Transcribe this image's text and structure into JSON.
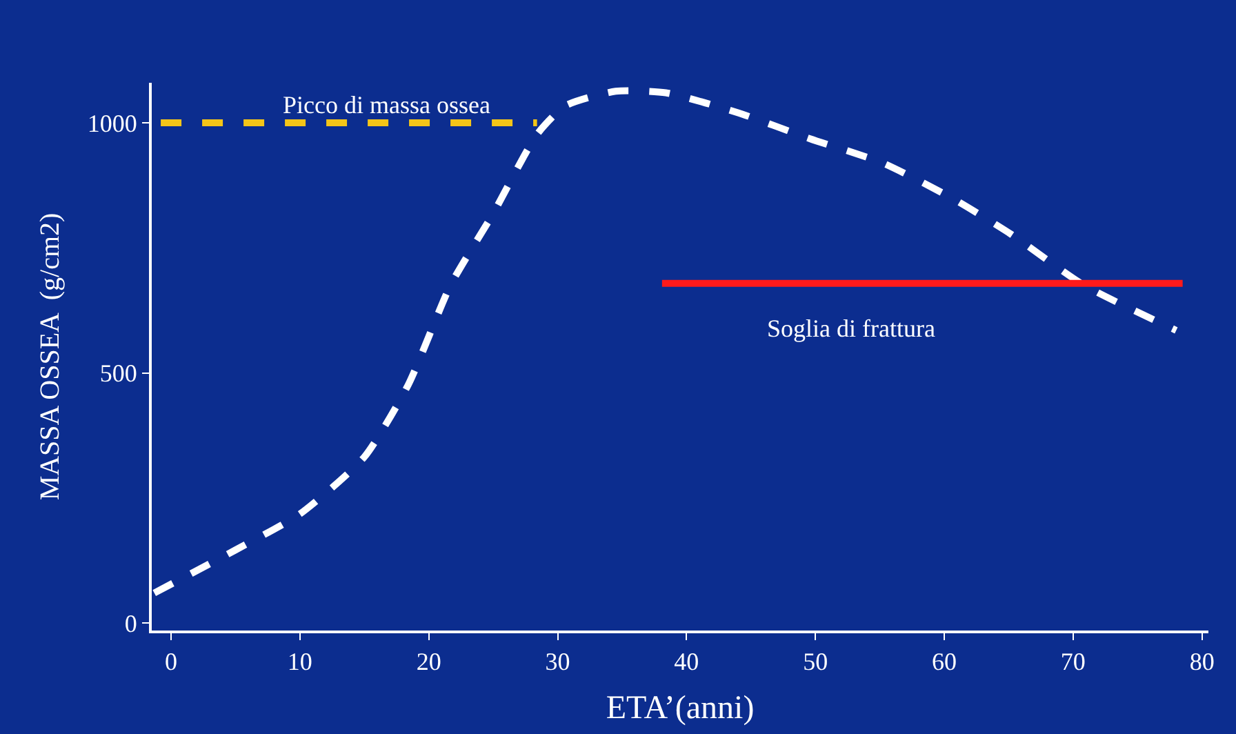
{
  "chart_data": {
    "type": "line",
    "xlabel": "ETA’(anni)",
    "ylabel": "MASSA OSSEA  (g/cm2)",
    "xlim": [
      -1.5,
      80.5
    ],
    "ylim": [
      -15,
      1080
    ],
    "xticks": [
      0,
      10,
      20,
      30,
      40,
      50,
      60,
      70,
      80
    ],
    "yticks": [
      0,
      500,
      1000
    ],
    "grid": false,
    "series": [
      {
        "color": "#ffffff",
        "line_style": "dashed",
        "x": [
          -1.3,
          5,
          10,
          15,
          18.4,
          21.7,
          25,
          28.4,
          30.6,
          34.5,
          38.4,
          44,
          49.6,
          55.2,
          60.7,
          65.2,
          70.8,
          78
        ],
        "values": [
          60,
          146,
          218,
          332,
          476,
          676,
          819,
          977,
          1034,
          1063,
          1060,
          1020,
          968,
          920,
          848,
          777,
          676,
          585
        ]
      },
      {
        "color": "#f5c518",
        "line_style": "dashed",
        "x": [
          -0.8,
          28.4
        ],
        "values": [
          1000,
          1000
        ]
      },
      {
        "color": "#ff1a1a",
        "line_style": "solid",
        "x": [
          38.1,
          78.5
        ],
        "values": [
          679,
          679
        ]
      }
    ],
    "annotations": [
      "Picco di massa ossea",
      "Soglia di frattura"
    ]
  }
}
